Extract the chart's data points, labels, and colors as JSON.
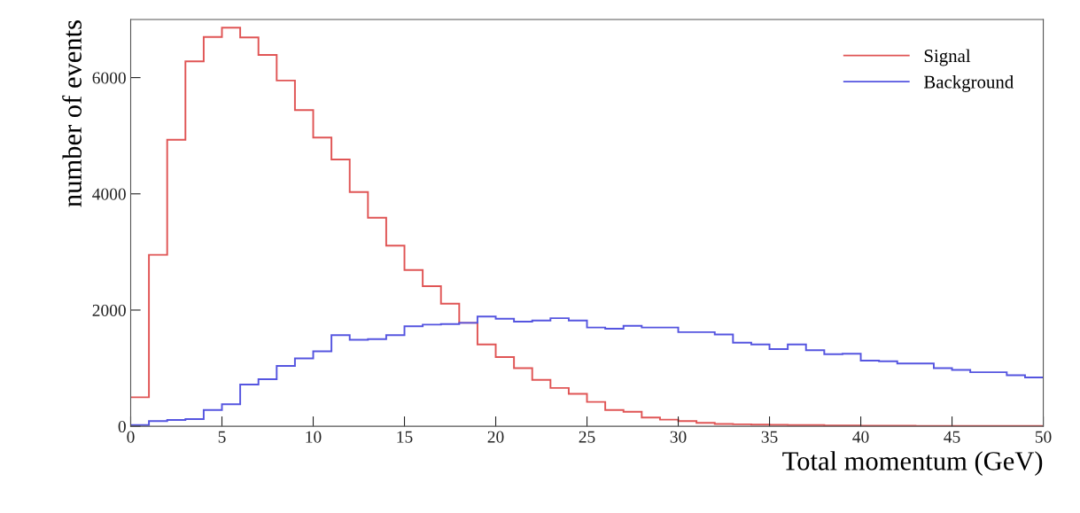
{
  "chart_data": {
    "type": "histogram",
    "xlabel": "Total momentum (GeV)",
    "ylabel": "number of events",
    "bins": [
      0,
      1,
      2,
      3,
      4,
      5,
      6,
      7,
      8,
      9,
      10,
      11,
      12,
      13,
      14,
      15,
      16,
      17,
      18,
      19,
      20,
      21,
      22,
      23,
      24,
      25,
      26,
      27,
      28,
      29,
      30,
      31,
      32,
      33,
      34,
      35,
      36,
      37,
      38,
      39,
      40,
      41,
      42,
      43,
      44,
      45,
      46,
      47,
      48,
      49,
      50
    ],
    "series": [
      {
        "name": "Signal",
        "color": "#e05555",
        "values": [
          500,
          2950,
          4930,
          6280,
          6700,
          6860,
          6690,
          6390,
          5950,
          5440,
          4970,
          4590,
          4030,
          3590,
          3110,
          2690,
          2410,
          2110,
          1780,
          1410,
          1190,
          1000,
          800,
          660,
          560,
          420,
          280,
          250,
          150,
          115,
          90,
          60,
          40,
          35,
          30,
          25,
          20,
          20,
          15,
          15,
          10,
          10,
          10,
          8,
          8,
          5,
          5,
          5,
          5,
          5
        ]
      },
      {
        "name": "Background",
        "color": "#5555e0",
        "values": [
          20,
          90,
          110,
          125,
          280,
          380,
          720,
          810,
          1040,
          1170,
          1290,
          1570,
          1490,
          1500,
          1570,
          1720,
          1750,
          1760,
          1780,
          1890,
          1850,
          1800,
          1820,
          1860,
          1820,
          1700,
          1680,
          1730,
          1700,
          1700,
          1620,
          1620,
          1580,
          1440,
          1410,
          1330,
          1410,
          1310,
          1240,
          1250,
          1130,
          1120,
          1080,
          1080,
          1000,
          970,
          930,
          930,
          880,
          840
        ]
      }
    ],
    "xlim": [
      0,
      50
    ],
    "xticks": [
      0,
      5,
      10,
      15,
      20,
      25,
      30,
      35,
      40,
      45,
      50
    ],
    "ylim": [
      0,
      7000
    ],
    "yticks": [
      0,
      2000,
      4000,
      6000
    ],
    "grid": false,
    "legend": "top right"
  }
}
